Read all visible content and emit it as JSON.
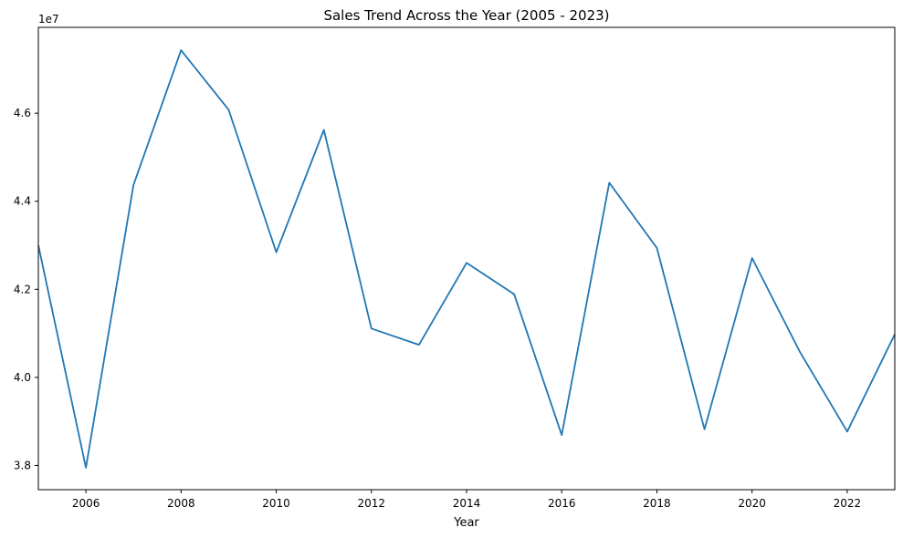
{
  "chart_data": {
    "type": "line",
    "title": "Sales Trend Across the Year (2005 - 2023)",
    "xlabel": "Year",
    "ylabel": "",
    "y_offset_label": "1e7",
    "xlim": [
      2005,
      2023
    ],
    "ylim": [
      3.745,
      4.795
    ],
    "x_ticks": [
      2006,
      2008,
      2010,
      2012,
      2014,
      2016,
      2018,
      2020,
      2022
    ],
    "y_ticks": [
      3.8,
      4.0,
      4.2,
      4.4,
      4.6
    ],
    "y_tick_labels": [
      "3.8",
      "4.0",
      "4.2",
      "4.4",
      "4.6"
    ],
    "grid": false,
    "legend": "none",
    "series": [
      {
        "color": "#1f77b4",
        "x": [
          2005,
          2006,
          2007,
          2008,
          2009,
          2010,
          2011,
          2012,
          2013,
          2014,
          2015,
          2016,
          2017,
          2018,
          2019,
          2020,
          2021,
          2022,
          2023
        ],
        "y": [
          4.3,
          3.795,
          4.437,
          4.743,
          4.608,
          4.284,
          4.562,
          4.111,
          4.074,
          4.26,
          4.189,
          3.869,
          4.442,
          4.294,
          3.882,
          4.271,
          4.059,
          3.877,
          4.098
        ]
      }
    ]
  }
}
